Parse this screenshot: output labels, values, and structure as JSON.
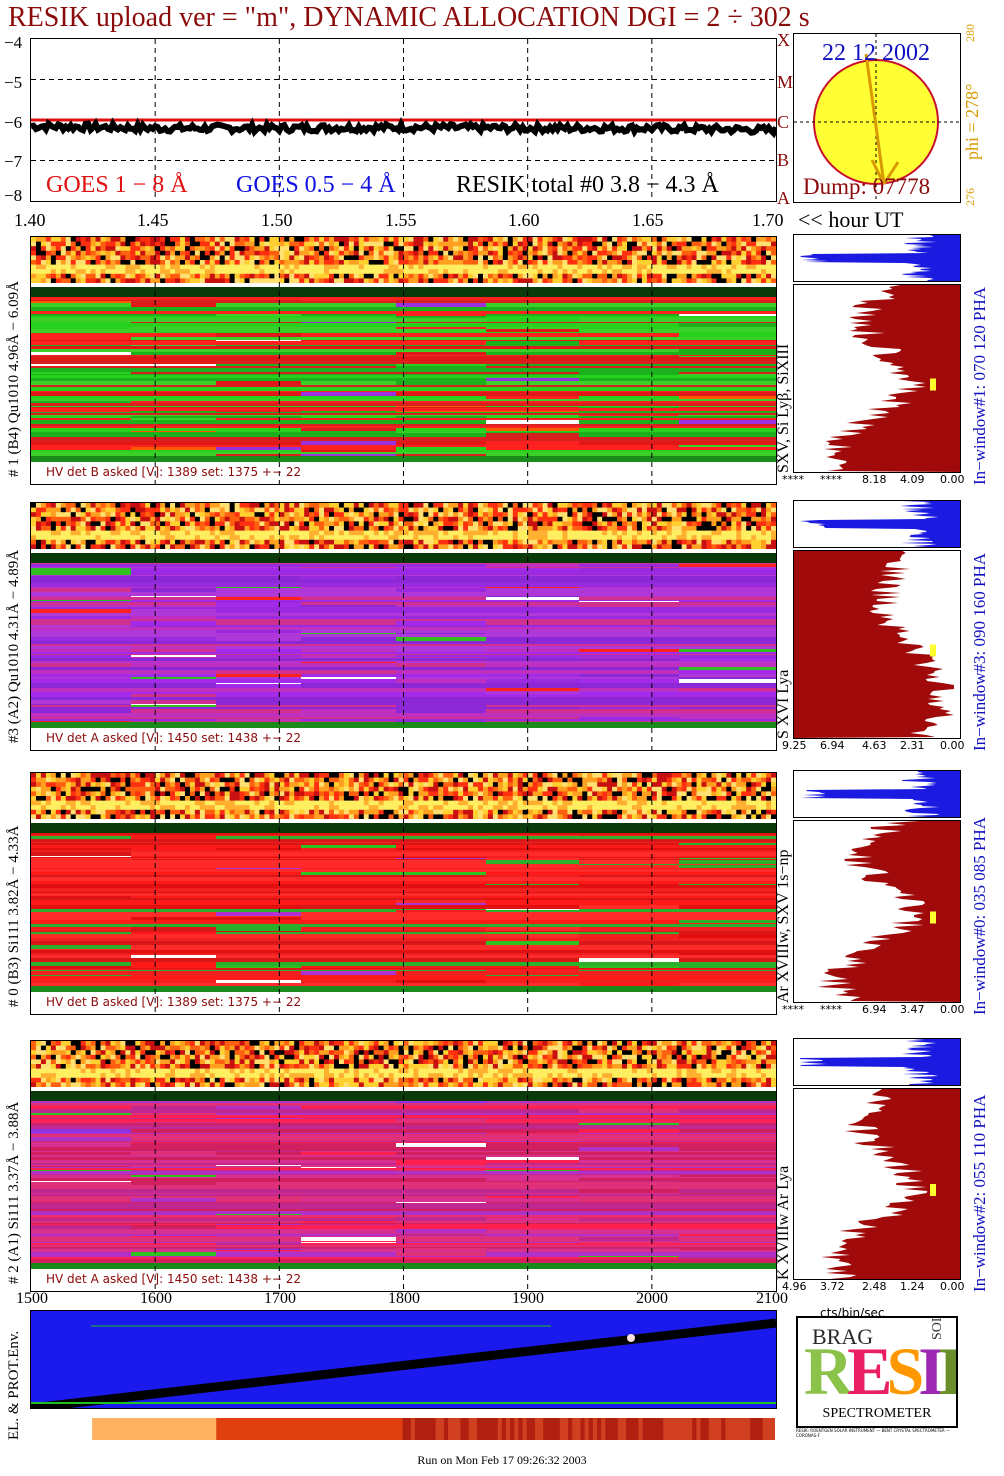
{
  "title": "RESIK upload ver = \"m\", DYNAMIC ALLOCATION  DGI =   2 ÷ 302 s",
  "goes": {
    "yticks": [
      "−4",
      "−5",
      "−6",
      "−7",
      "−8"
    ],
    "legend_goes18": "GOES 1 − 8 Å",
    "legend_goes054": "GOES 0.5 − 4 Å",
    "legend_resik": "RESIK total #0  3.8 − 4.3 Å",
    "xticks": [
      "1.40",
      "1.45",
      "1.50",
      "1.55",
      "1.60",
      "1.65",
      "1.70"
    ],
    "xunit": "<< hour UT",
    "colors": {
      "goes18": "#e01010",
      "goes054": "#1010e0",
      "resik": "#000000"
    }
  },
  "sun": {
    "date": "22 12 2002",
    "dump": "Dump: 07778",
    "phi": "phi = 278°",
    "phi_hi": "280",
    "phi_lo": "276",
    "classes": [
      "X",
      "M",
      "C",
      "B",
      "A"
    ]
  },
  "chart_data": {
    "type": "line",
    "x": [
      1.4,
      1.45,
      1.5,
      1.55,
      1.6,
      1.65,
      1.7
    ],
    "ylim": [
      -8,
      -4
    ],
    "xlim": [
      1.4,
      1.7
    ],
    "series": [
      {
        "name": "GOES 1 − 8 Å",
        "values": [
          -6.0,
          -6.0,
          -6.0,
          -6.0,
          -6.0,
          -6.0,
          -6.0
        ]
      },
      {
        "name": "RESIK total #0  3.8 − 4.3 Å",
        "values": [
          -6.15,
          -6.2,
          -6.2,
          -6.18,
          -6.2,
          -6.2,
          -6.25
        ]
      }
    ]
  },
  "panels": [
    {
      "id": "p1",
      "det_label": "# 1 (B4) Qu1010 4.96Å − 6.09Å",
      "line_label": "SXV, Si Lyβ, SiXIII",
      "window_label": "In−window#1:  070 120 PHA",
      "hv": "HV det B asked [V]:  1389 set:  1375  +−  22",
      "hist_ticks": [
        "****",
        "****",
        "8.18",
        "4.09",
        "0.00"
      ],
      "dominant": "green"
    },
    {
      "id": "p2",
      "det_label": "#3 (A2) Qu1010  4.31Å − 4.89Å",
      "line_label": "S XVI Lya",
      "window_label": "In−window#3:  090 160 PHA",
      "hv": "HV det A asked [V]:  1450 set:  1438  +−  22",
      "hist_ticks": [
        "9.25",
        "6.94",
        "4.63",
        "2.31",
        "0.00"
      ],
      "dominant": "purple"
    },
    {
      "id": "p3",
      "det_label": "# 0 (B3) Si111  3.82Å − 4.33Å",
      "line_label": "Ar XVIIIw,  SXV 1s−np",
      "window_label": "In−window#0:  035 085 PHA",
      "hv": "HV det B asked [V]:  1389 set:  1375  +−  22",
      "hist_ticks": [
        "****",
        "****",
        "6.94",
        "3.47",
        "0.00"
      ],
      "dominant": "red"
    },
    {
      "id": "p4",
      "det_label": "# 2 (A1) Si111  3.37Å − 3.88Å",
      "line_label": "K XVIIIw  Ar Lya",
      "window_label": "In−window#2:  055 110 PHA",
      "hv": "HV det A asked [V]:  1450 set:  1438  +−  22",
      "hist_ticks": [
        "4.96",
        "3.72",
        "2.48",
        "1.24",
        "0.00"
      ],
      "dominant": "magenta"
    }
  ],
  "hist_unit": "cts/bin/sec",
  "timescale": {
    "ticks": [
      "1500",
      "1600",
      "1700",
      "1800",
      "1900",
      "2000",
      "2100"
    ]
  },
  "env": {
    "label": "EL. & PROT.Env."
  },
  "logo": {
    "word": "RESIK",
    "small_left": "BRAG",
    "small_right": "SOLAR",
    "caption": "SPECTROMETER",
    "fine_print": "RESIK: ROENTGEN SOLAR INSTRUMENT — BENT CRYSTAL SPECTROMETER — CORONAS-F"
  },
  "run_on": "Run on Mon Feb 17 09:26:32 2003",
  "colors": {
    "title": "#8b0a0a",
    "hist_blue": "#1a1ae0",
    "hist_red": "#a00a0a",
    "sun": "#ffff33",
    "sun_edge": "#c8102e",
    "env_blue": "#1a1aef"
  }
}
